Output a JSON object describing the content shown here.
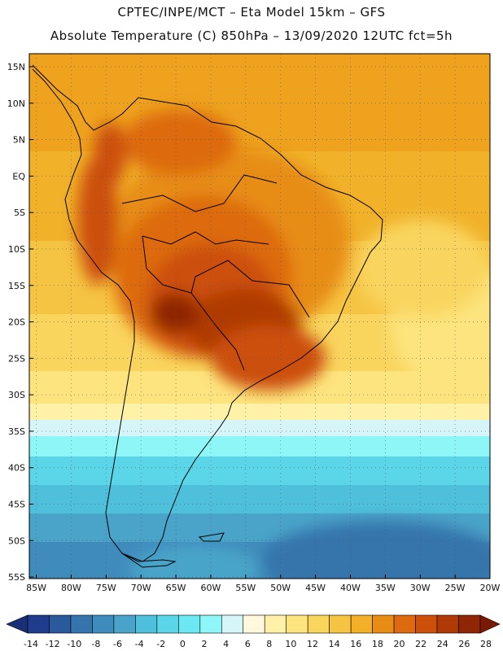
{
  "title_line1": "CPTEC/INPE/MCT –  Eta Model 15km – GFS",
  "title_line2": "Absolute Temperature (C) 850hPa – 13/09/2020 12UTC fct=5h",
  "map": {
    "lat_labels": [
      "15N",
      "10N",
      "5N",
      "EQ",
      "5S",
      "10S",
      "15S",
      "20S",
      "25S",
      "30S",
      "35S",
      "40S",
      "45S",
      "50S",
      "55S"
    ],
    "lon_labels": [
      "85W",
      "80W",
      "75W",
      "70W",
      "65W",
      "60W",
      "55W",
      "50W",
      "45W",
      "40W",
      "35W",
      "30W",
      "25W",
      "20W"
    ],
    "lat_range": [
      15,
      -57
    ],
    "lon_range": [
      -86,
      -20
    ]
  },
  "colorbar": {
    "labels": [
      "-14",
      "-12",
      "-10",
      "-8",
      "-6",
      "-4",
      "-2",
      "0",
      "2",
      "4",
      "6",
      "8",
      "10",
      "12",
      "14",
      "16",
      "18",
      "20",
      "22",
      "24",
      "26",
      "28"
    ],
    "colors": [
      "#1f3d8c",
      "#2b5a9c",
      "#3574ac",
      "#3f8cbc",
      "#4aa4c9",
      "#4fc0db",
      "#5ad6e8",
      "#6be8f2",
      "#8ef6f6",
      "#d6f5f8",
      "#fff7de",
      "#fff2a8",
      "#fde47e",
      "#f9d55e",
      "#f6c443",
      "#f1b028",
      "#e78d16",
      "#dd6a0e",
      "#cc5009",
      "#b03a06",
      "#8f2605"
    ],
    "min_color": "#1b2f78",
    "max_color": "#7a1a04"
  }
}
